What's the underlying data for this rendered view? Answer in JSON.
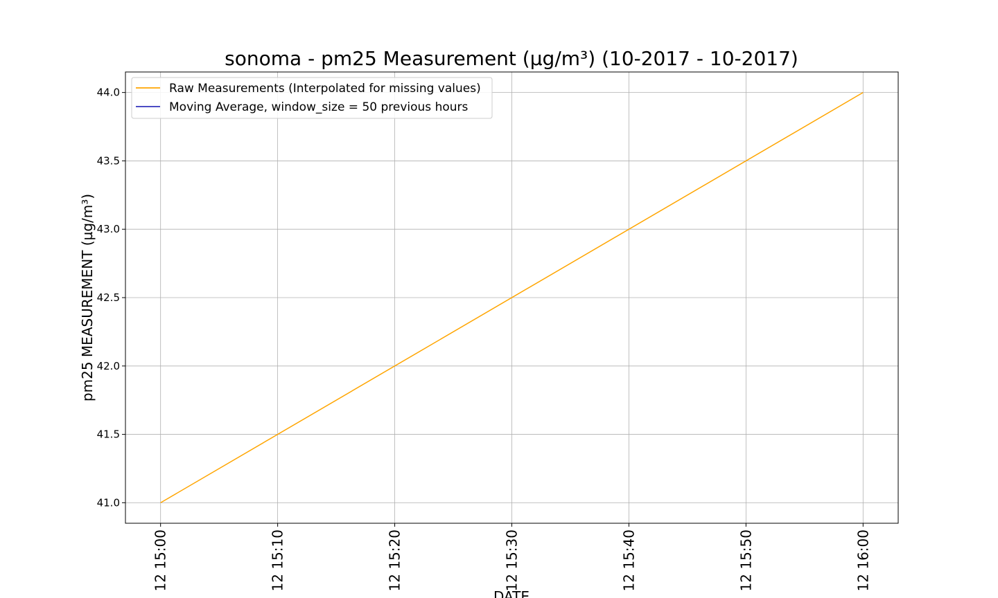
{
  "chart_data": {
    "type": "line",
    "title": "sonoma - pm25 Measurement (µg/m³) (10-2017 - 10-2017)",
    "xlabel": "DATE",
    "ylabel": "pm25 MEASUREMENT (µg/m³)",
    "x_tick_labels": [
      "12 15:00",
      "12 15:10",
      "12 15:20",
      "12 15:30",
      "12 15:40",
      "12 15:50",
      "12 16:00"
    ],
    "x_tick_minutes": [
      0,
      10,
      20,
      30,
      40,
      50,
      60
    ],
    "xlim_minutes": [
      -3,
      63
    ],
    "y_ticks": [
      41.0,
      41.5,
      42.0,
      42.5,
      43.0,
      43.5,
      44.0
    ],
    "ylim": [
      40.85,
      44.15
    ],
    "grid": true,
    "legend_position": "upper-left",
    "series": [
      {
        "name": "Raw Measurements (Interpolated for missing values)",
        "color": "#ffa500",
        "x_minutes": [
          0,
          60
        ],
        "y": [
          41.0,
          44.0
        ]
      },
      {
        "name": "Moving Average, window_size = 50 previous hours",
        "color": "#3333bb",
        "x_minutes": [],
        "y": []
      }
    ]
  }
}
